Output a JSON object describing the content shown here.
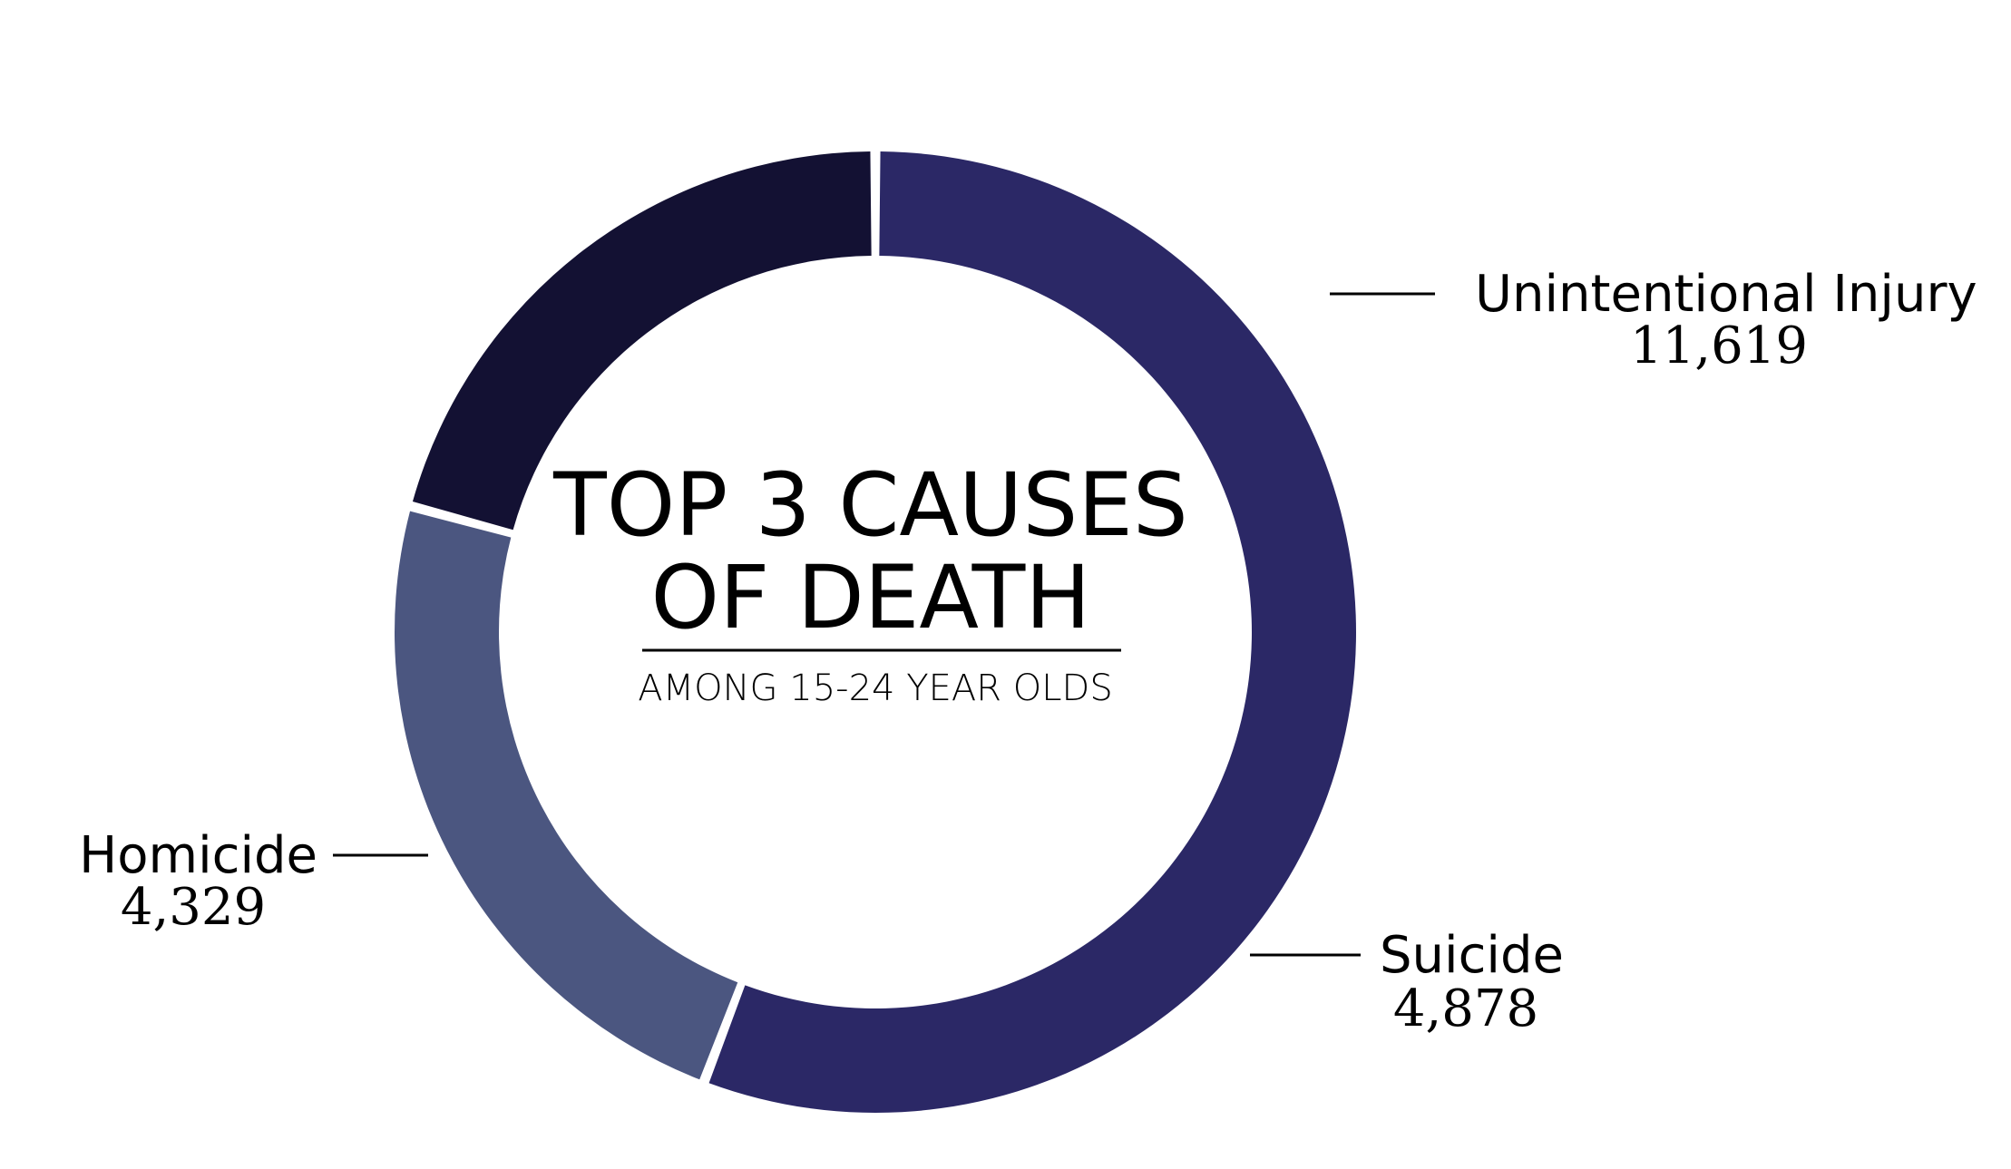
{
  "chart_data": {
    "type": "pie",
    "title": "TOP 3 CAUSES OF DEATH",
    "title_lines": [
      "TOP 3 CAUSES",
      "OF DEATH"
    ],
    "subtitle": "AMONG 15-24 YEAR OLDS",
    "slices": [
      {
        "label": "Unintentional Injury",
        "value": 11619,
        "value_label": "11,619",
        "color": "#2b2866"
      },
      {
        "label": "Suicide",
        "value": 4878,
        "value_label": "4,878",
        "color": "#4b5680"
      },
      {
        "label": "Homicide",
        "value": 4329,
        "value_label": "4,329",
        "color": "#131133"
      }
    ],
    "start_angle_deg": 270,
    "background": "#ffffff"
  }
}
